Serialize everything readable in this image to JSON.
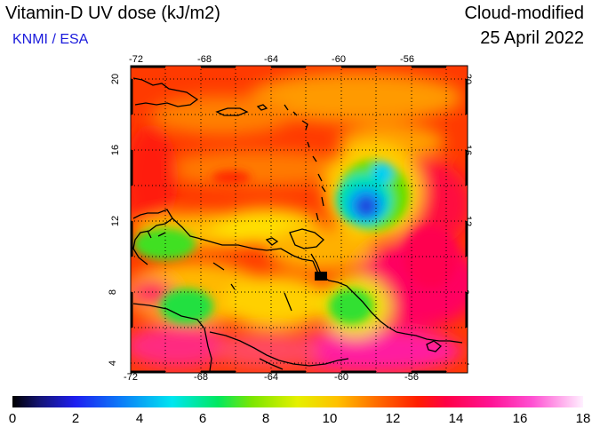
{
  "header": {
    "title": "Vitamin-D UV dose (kJ/m2)",
    "source": "KNMI / ESA",
    "product": "Cloud-modified",
    "date": "25 April 2022"
  },
  "map": {
    "lon_ticks": [
      "-72",
      "-68",
      "-64",
      "-60",
      "-56"
    ],
    "lat_ticks": [
      "4",
      "8",
      "12",
      "16",
      "20"
    ],
    "lon_range": [
      -72,
      -52
    ],
    "lat_range": [
      3.5,
      20.5
    ]
  },
  "colorbar": {
    "labels": [
      "0",
      "2",
      "4",
      "6",
      "8",
      "10",
      "12",
      "14",
      "16",
      "18"
    ],
    "colors": [
      "#000000",
      "#1e1ef0",
      "#00e6f0",
      "#00e860",
      "#e6f000",
      "#ff6a00",
      "#ff0046",
      "#ff1496",
      "#fff0ff"
    ]
  }
}
